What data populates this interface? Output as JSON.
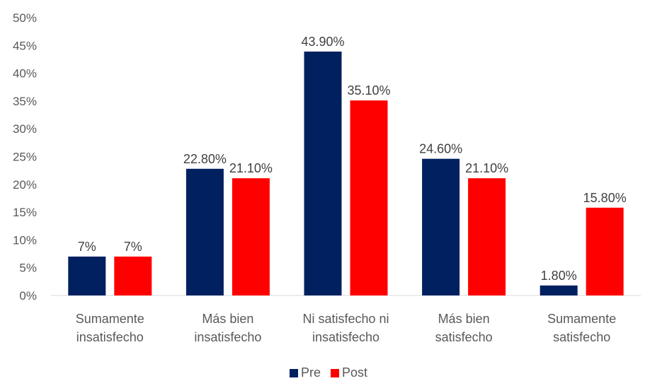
{
  "chart_data": {
    "type": "bar",
    "categories": [
      [
        "Sumamente",
        "insatisfecho"
      ],
      [
        "Más bien",
        "insatisfecho"
      ],
      [
        "Ni satisfecho ni",
        "insatisfecho"
      ],
      [
        "Más bien",
        "satisfecho"
      ],
      [
        "Sumamente",
        "satisfecho"
      ]
    ],
    "series": [
      {
        "name": "Pre",
        "color": "#002060",
        "values": [
          7,
          22.8,
          43.9,
          24.6,
          1.8
        ],
        "labels": [
          "7%",
          "22.80%",
          "43.90%",
          "24.60%",
          "1.80%"
        ]
      },
      {
        "name": "Post",
        "color": "#ff0000",
        "values": [
          7,
          21.1,
          35.1,
          21.1,
          15.8
        ],
        "labels": [
          "7%",
          "21.10%",
          "35.10%",
          "21.10%",
          "15.80%"
        ]
      }
    ],
    "ylim": [
      0,
      50
    ],
    "yticks": [
      "0%",
      "5%",
      "10%",
      "15%",
      "20%",
      "25%",
      "30%",
      "35%",
      "40%",
      "45%",
      "50%"
    ],
    "grid": false,
    "legend_position": "bottom"
  }
}
